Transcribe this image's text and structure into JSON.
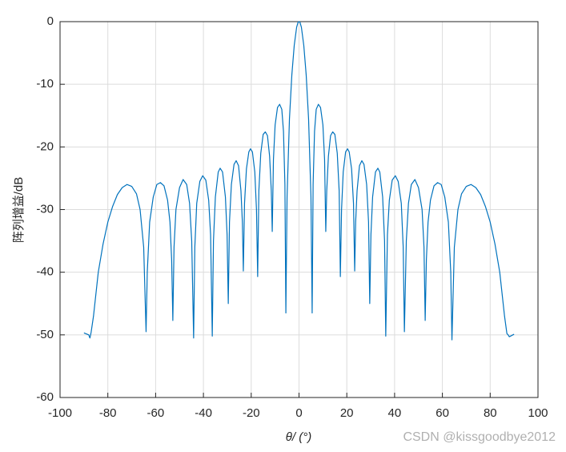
{
  "chart_data": {
    "type": "line",
    "xlabel": "θ/ (°)",
    "ylabel": "阵列增益/dB",
    "watermark": "CSDN @kissgoodbye2012",
    "x": [
      -90,
      -88,
      -87.5,
      -87,
      -86,
      -84,
      -82,
      -80,
      -78,
      -76,
      -74,
      -72,
      -70,
      -68,
      -66.5,
      -65,
      -64,
      -63.5,
      -62.5,
      -61,
      -59.5,
      -58,
      -56.5,
      -55,
      -54,
      -53.3,
      -52.8,
      -52.3,
      -51.5,
      -50,
      -48.5,
      -47,
      -45.8,
      -44.9,
      -44.1,
      -43.6,
      -42.8,
      -41.5,
      -40.3,
      -39,
      -37.8,
      -37,
      -36.3,
      -35.8,
      -35,
      -33.8,
      -33,
      -32,
      -30.8,
      -30.1,
      -29.6,
      -29.1,
      -28.3,
      -27.2,
      -26.3,
      -25.3,
      -24.3,
      -23.7,
      -23.3,
      -22.8,
      -22,
      -21,
      -20.3,
      -19.5,
      -18.5,
      -17.8,
      -17.3,
      -16.8,
      -16,
      -15,
      -14.1,
      -13.2,
      -12.3,
      -11.6,
      -11.2,
      -10.7,
      -10,
      -9,
      -8.1,
      -7.2,
      -6.5,
      -5.9,
      -5.5,
      -5,
      -4,
      -3,
      -2,
      -1,
      -0.4,
      0,
      0.4,
      1,
      2,
      3,
      4,
      5,
      5.5,
      5.9,
      6.5,
      7.2,
      8.1,
      9,
      10,
      10.7,
      11.2,
      11.6,
      12.3,
      13.2,
      14.1,
      15,
      16,
      16.8,
      17.3,
      17.8,
      18.5,
      19.5,
      20.3,
      21,
      22,
      22.8,
      23.3,
      23.7,
      24.3,
      25.3,
      26.3,
      27.2,
      28.3,
      29.1,
      29.6,
      30.1,
      30.8,
      32,
      33,
      33.8,
      35,
      35.8,
      36.3,
      37,
      37.8,
      39,
      40.3,
      41.5,
      42.8,
      43.6,
      44.1,
      44.9,
      45.8,
      47,
      48.5,
      50,
      51.5,
      52.3,
      52.8,
      53.3,
      54,
      55,
      56.5,
      58,
      59.5,
      61,
      62.5,
      63.5,
      64,
      65,
      66.5,
      68,
      70,
      72,
      74,
      76,
      78,
      80,
      82,
      84,
      86,
      87,
      87.5,
      88,
      90
    ],
    "series": [
      {
        "color": "#0072bd",
        "values": [
          -49.7,
          -50,
          -50.5,
          -49.6,
          -47,
          -40,
          -35.5,
          -32,
          -29.5,
          -27.6,
          -26.5,
          -26,
          -26.3,
          -27.5,
          -30,
          -36,
          -49.5,
          -40,
          -32,
          -28,
          -26,
          -25.7,
          -26.2,
          -28.5,
          -32,
          -38,
          -47.7,
          -36,
          -30,
          -26.5,
          -25.2,
          -26,
          -29,
          -35,
          -50.5,
          -36,
          -29,
          -25.5,
          -24.6,
          -25.3,
          -28.5,
          -34,
          -50.2,
          -35,
          -28,
          -24,
          -23.4,
          -24,
          -28,
          -34,
          -45,
          -32,
          -26,
          -22.8,
          -22.2,
          -23,
          -27,
          -32,
          -39.8,
          -29,
          -23.5,
          -20.8,
          -20.3,
          -20.8,
          -24,
          -30,
          -40.7,
          -27,
          -21,
          -18,
          -17.6,
          -18.2,
          -21.5,
          -27,
          -33.5,
          -22,
          -16.5,
          -13.7,
          -13.2,
          -14,
          -17.5,
          -26,
          -46.5,
          -28,
          -15.5,
          -8.5,
          -3.8,
          -0.9,
          -0.1,
          0,
          -0.1,
          -0.9,
          -3.8,
          -8.5,
          -15.5,
          -28,
          -46.5,
          -26,
          -17.5,
          -14,
          -13.2,
          -13.7,
          -16.5,
          -22,
          -33.5,
          -27,
          -21.5,
          -18.2,
          -17.6,
          -18,
          -21,
          -27,
          -40.7,
          -30,
          -24,
          -20.8,
          -20.3,
          -20.8,
          -23.5,
          -29,
          -39.8,
          -32,
          -27,
          -23,
          -22.2,
          -22.8,
          -26,
          -32,
          -45,
          -34,
          -28,
          -24,
          -23.4,
          -24,
          -28,
          -35,
          -50.2,
          -34,
          -28.5,
          -25.3,
          -24.6,
          -25.5,
          -29,
          -36,
          -49.5,
          -35,
          -29,
          -26,
          -25.2,
          -26.5,
          -30,
          -36,
          -47.7,
          -38,
          -32,
          -28.5,
          -26.2,
          -25.7,
          -26,
          -28,
          -32,
          -40,
          -50.8,
          -36,
          -30,
          -27.5,
          -26.3,
          -26,
          -26.5,
          -27.6,
          -29.5,
          -32,
          -35.5,
          -40,
          -47,
          -49.8,
          -50,
          -50.3,
          -49.9
        ]
      }
    ],
    "xlim": [
      -100,
      100
    ],
    "xticks": [
      -100,
      -80,
      -60,
      -40,
      -20,
      0,
      20,
      40,
      60,
      80,
      100
    ],
    "ylim": [
      -60,
      0
    ],
    "yticks": [
      -60,
      -50,
      -40,
      -30,
      -20,
      -10,
      0
    ],
    "grid": true
  }
}
